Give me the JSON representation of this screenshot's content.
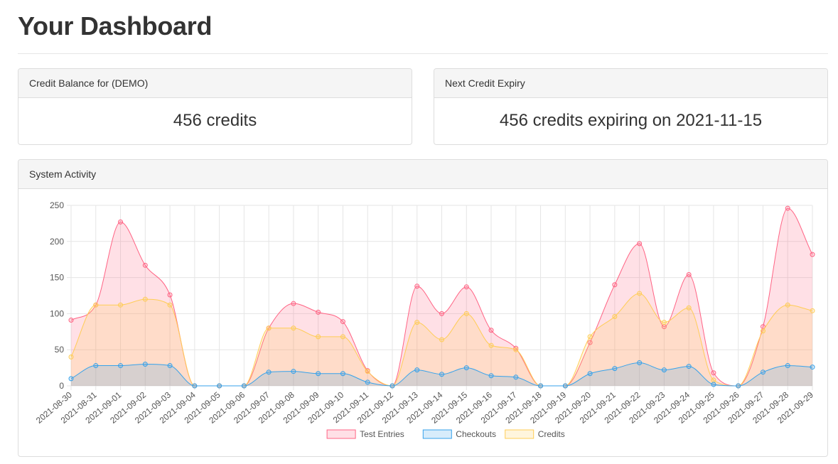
{
  "page": {
    "title": "Your Dashboard"
  },
  "balance": {
    "header": "Credit Balance for (DEMO)",
    "value": "456 credits"
  },
  "expiry": {
    "header": "Next Credit Expiry",
    "value": "456 credits expiring on 2021-11-15"
  },
  "activity": {
    "header": "System Activity"
  },
  "chart_data": {
    "type": "area",
    "x": [
      "2021-08-30",
      "2021-08-31",
      "2021-09-01",
      "2021-09-02",
      "2021-09-03",
      "2021-09-04",
      "2021-09-05",
      "2021-09-06",
      "2021-09-07",
      "2021-09-08",
      "2021-09-09",
      "2021-09-10",
      "2021-09-11",
      "2021-09-12",
      "2021-09-13",
      "2021-09-14",
      "2021-09-15",
      "2021-09-16",
      "2021-09-17",
      "2021-09-18",
      "2021-09-19",
      "2021-09-20",
      "2021-09-21",
      "2021-09-22",
      "2021-09-23",
      "2021-09-24",
      "2021-09-25",
      "2021-09-26",
      "2021-09-27",
      "2021-09-28",
      "2021-09-29"
    ],
    "series": [
      {
        "name": "Test Entries",
        "color": "#ff6384",
        "fill": "rgba(255,99,132,0.2)",
        "values": [
          91,
          112,
          227,
          167,
          126,
          0,
          0,
          0,
          80,
          114,
          102,
          89,
          21,
          0,
          138,
          100,
          137,
          77,
          52,
          0,
          0,
          60,
          140,
          197,
          82,
          154,
          18,
          0,
          82,
          246,
          182
        ]
      },
      {
        "name": "Checkouts",
        "color": "#36a2eb",
        "fill": "rgba(54,162,235,0.2)",
        "values": [
          10,
          28,
          28,
          30,
          28,
          0,
          0,
          0,
          19,
          20,
          17,
          17,
          5,
          0,
          22,
          16,
          25,
          14,
          12,
          0,
          0,
          17,
          24,
          32,
          22,
          27,
          2,
          0,
          19,
          28,
          26
        ]
      },
      {
        "name": "Credits",
        "color": "#ffcd56",
        "fill": "rgba(255,205,86,0.2)",
        "values": [
          40,
          112,
          112,
          120,
          112,
          0,
          0,
          0,
          80,
          80,
          68,
          68,
          20,
          0,
          88,
          64,
          100,
          56,
          50,
          0,
          0,
          68,
          96,
          128,
          88,
          108,
          8,
          0,
          76,
          112,
          104
        ]
      }
    ],
    "y_ticks": [
      0,
      50,
      100,
      150,
      200,
      250
    ],
    "ylim": [
      0,
      250
    ],
    "grid": true,
    "legend_position": "bottom",
    "title": "",
    "xlabel": "",
    "ylabel": ""
  }
}
